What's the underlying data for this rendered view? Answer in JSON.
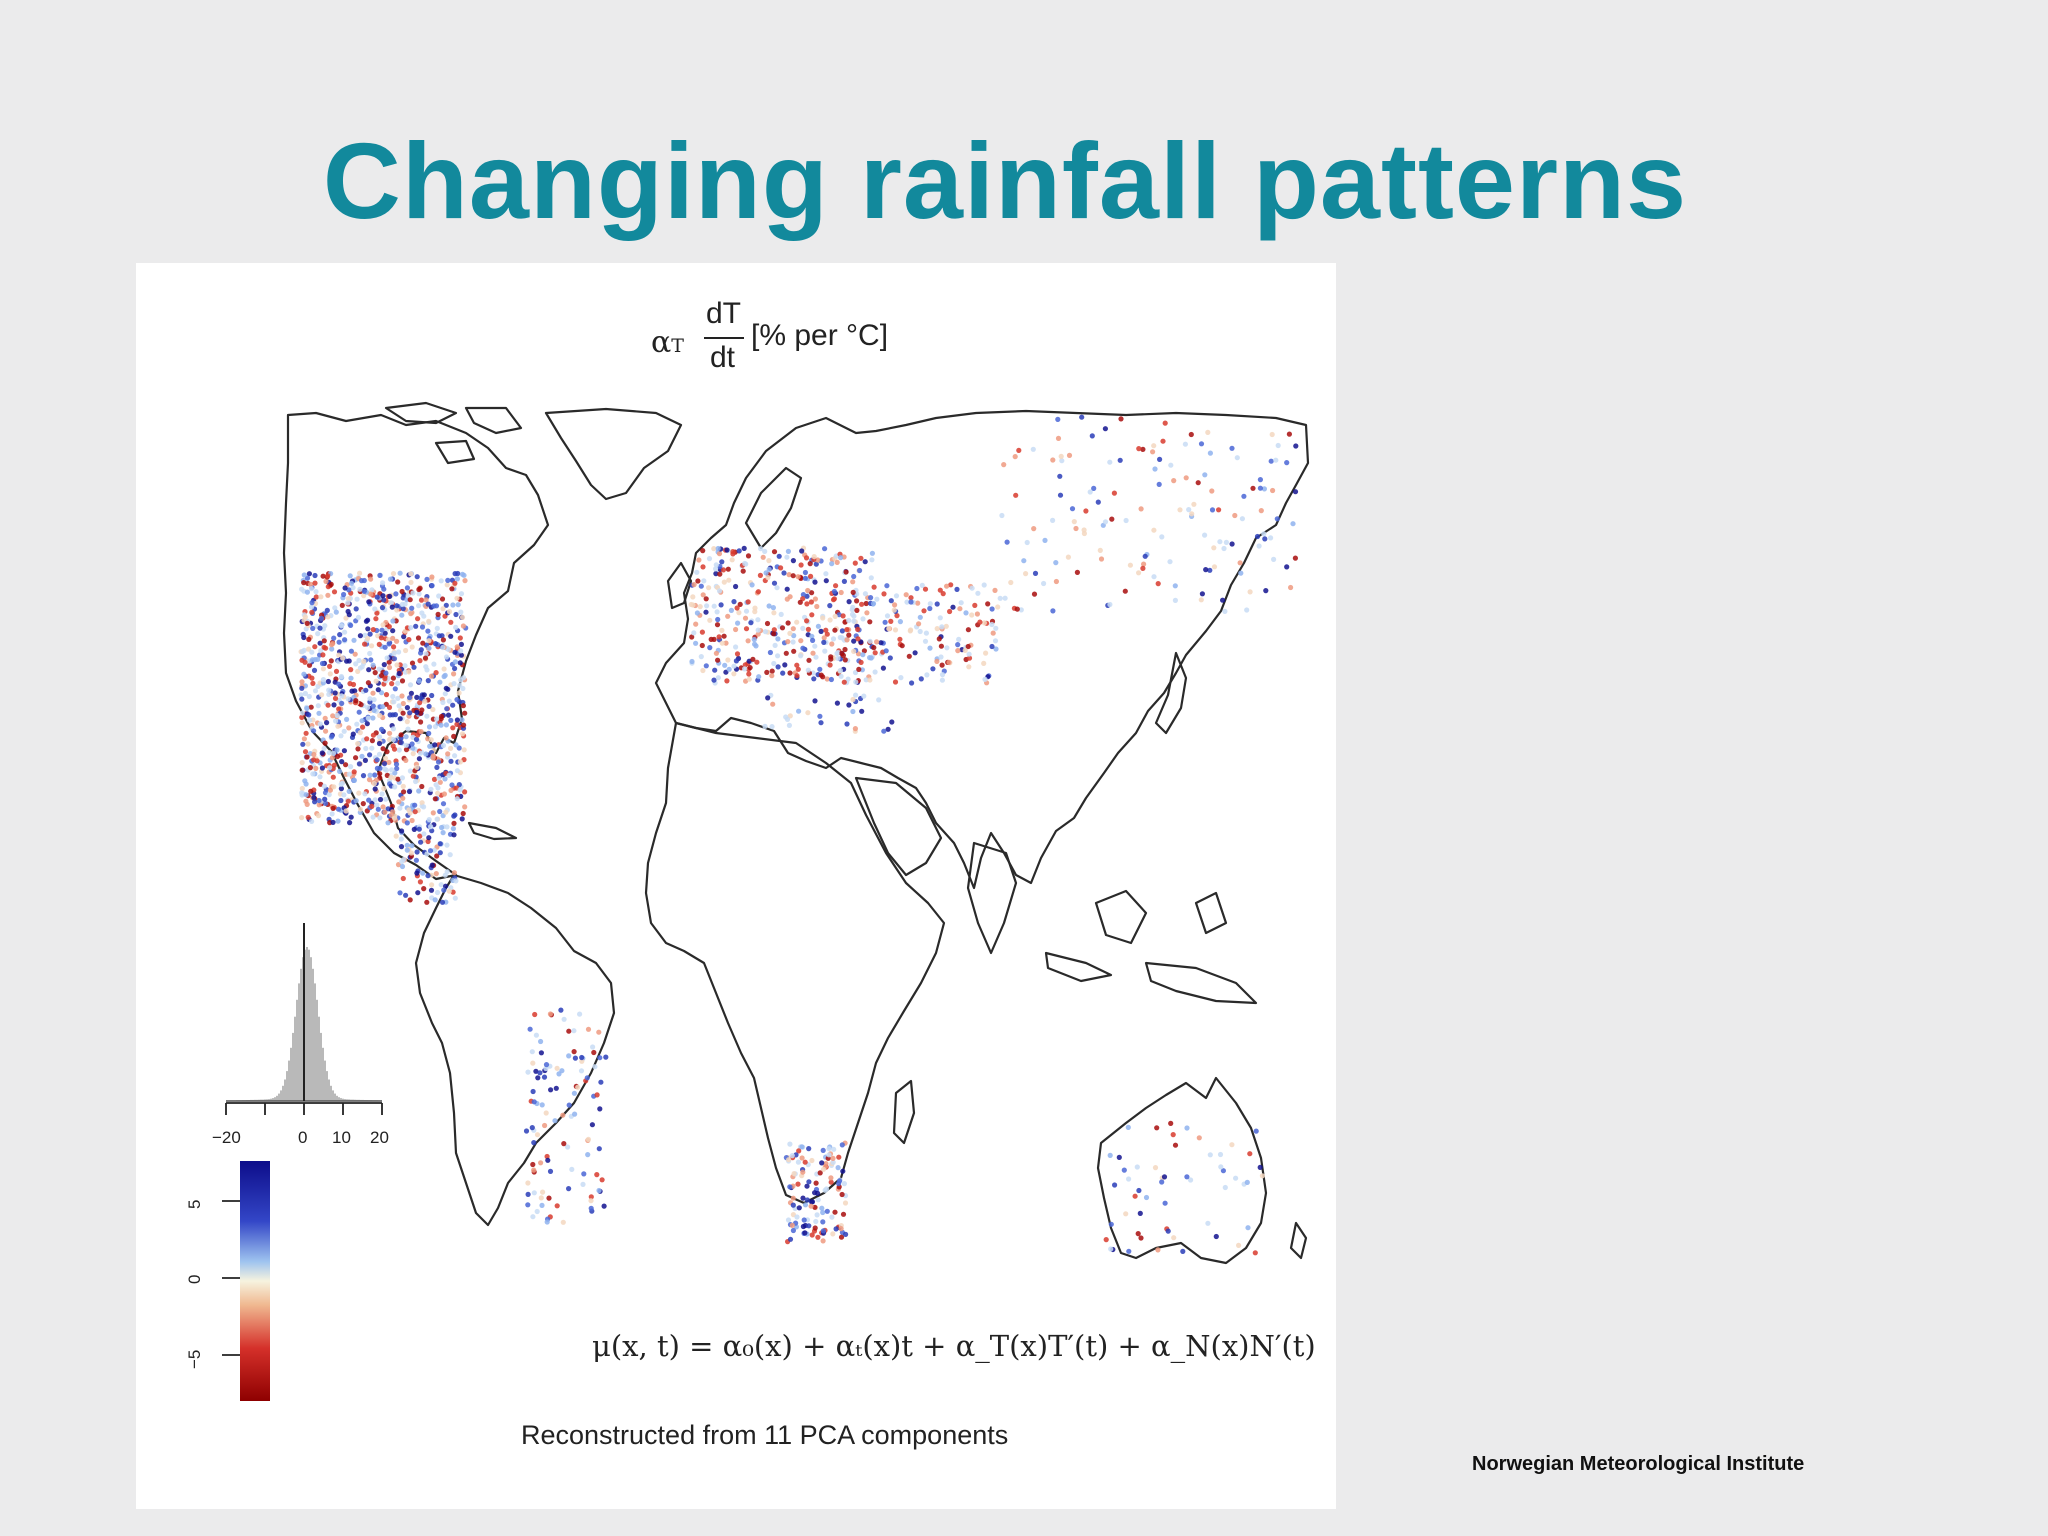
{
  "slide": {
    "title": "Changing rainfall patterns",
    "footer": "Norwegian Meteorological Institute"
  },
  "map": {
    "title_symbol": "α",
    "title_subscript": "T",
    "title_numerator": "dT",
    "title_denominator": "dt",
    "title_unit": "[% per °C]",
    "equation": "μ(x, t) = α₀(x) + αₜ(x)t + α_T(x)T′(t) + α_N(x)N′(t)",
    "caption": "Reconstructed from 11 PCA components",
    "histogram_ticks": [
      "−20",
      "0",
      "10",
      "20"
    ],
    "colorbar_ticks": [
      "5",
      "0",
      "−5"
    ],
    "colors": {
      "positive": "#1f2fa8",
      "neutral": "#f7f2dc",
      "negative": "#b01515",
      "coast": "#2a2a2a"
    },
    "colorbar_range": [
      -8,
      8
    ],
    "histogram_range": [
      -20,
      20
    ]
  }
}
